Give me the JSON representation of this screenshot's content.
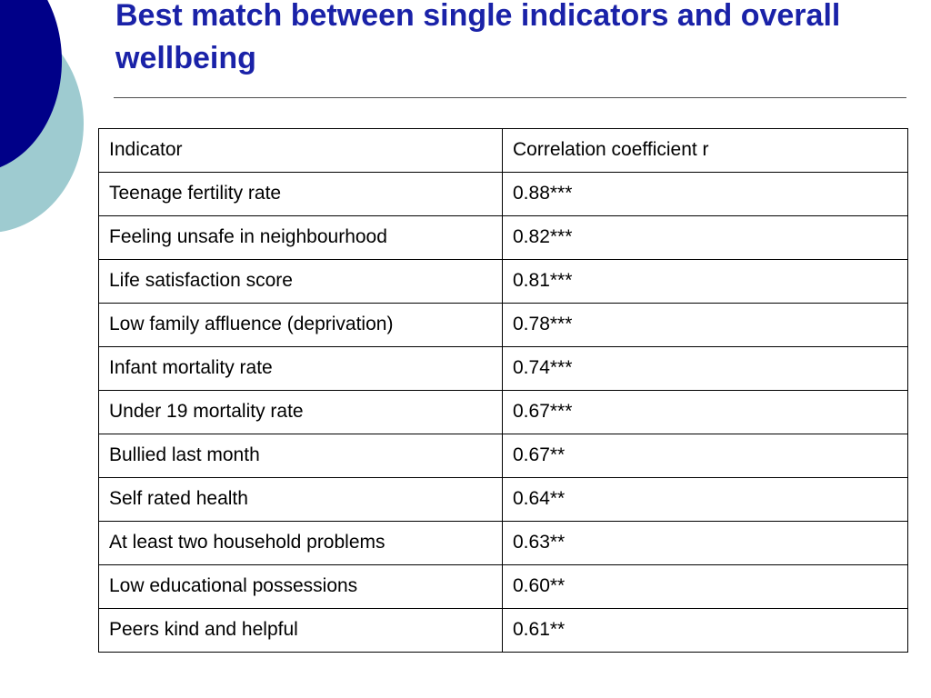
{
  "title": "Best match between single indicators and overall wellbeing",
  "colors": {
    "title": "#1a22a8",
    "deco_dark": "#000088",
    "deco_light": "#9ecbd0"
  },
  "table": {
    "headers": [
      "Indicator",
      "Correlation coefficient r"
    ],
    "rows": [
      [
        "Teenage fertility rate",
        "0.88***"
      ],
      [
        "Feeling unsafe in neighbourhood",
        "0.82***"
      ],
      [
        "Life satisfaction score",
        "0.81***"
      ],
      [
        "Low family affluence (deprivation)",
        "0.78***"
      ],
      [
        "Infant mortality rate",
        "0.74***"
      ],
      [
        "Under 19 mortality rate",
        "0.67***"
      ],
      [
        "Bullied last month",
        "0.67**"
      ],
      [
        "Self rated health",
        "0.64**"
      ],
      [
        "At least two household problems",
        "0.63**"
      ],
      [
        "Low educational possessions",
        "0.60**"
      ],
      [
        "Peers kind and helpful",
        "0.61**"
      ]
    ]
  }
}
